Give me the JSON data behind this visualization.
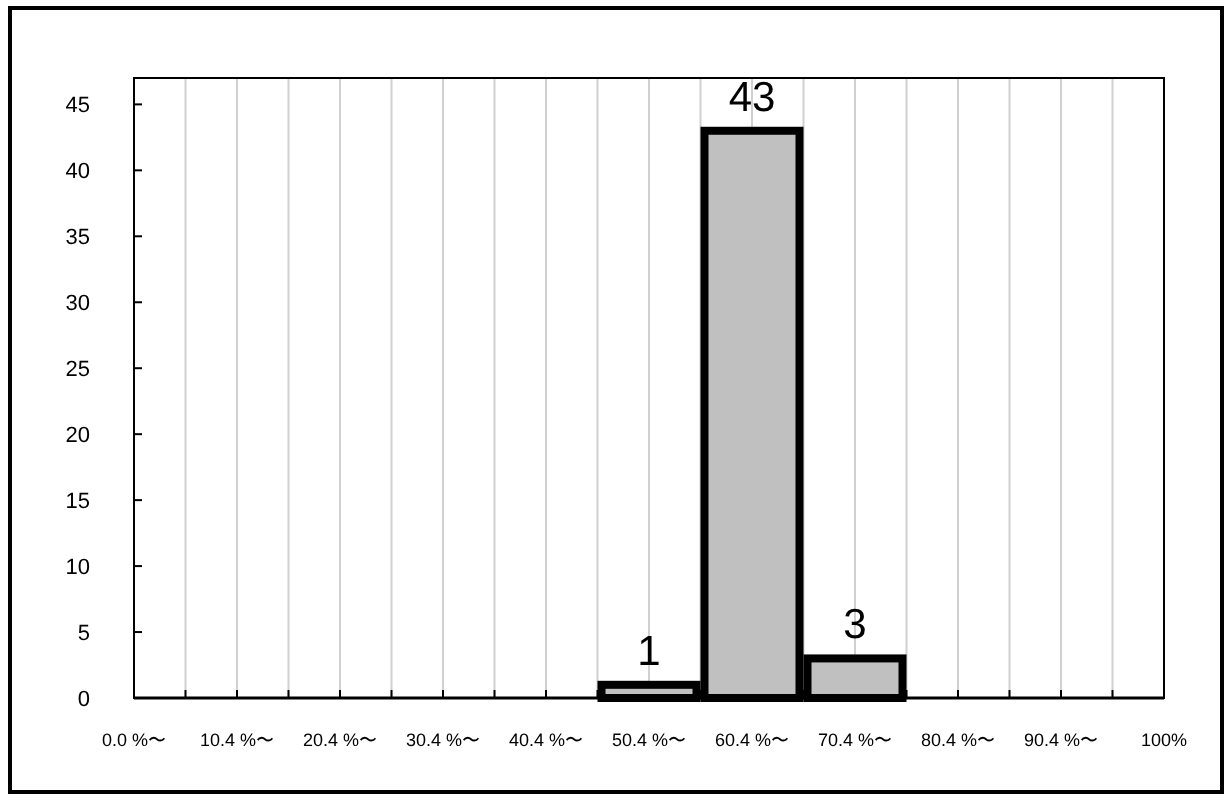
{
  "chart_data": {
    "type": "bar",
    "categories": [
      "0.0 %〜",
      "10.4 %〜",
      "20.4 %〜",
      "30.4 %〜",
      "40.4 %〜",
      "50.4 %〜",
      "60.4 %〜",
      "70.4 %〜",
      "80.4 %〜",
      "90.4 %〜",
      "100%"
    ],
    "values": [
      0,
      0,
      0,
      0,
      0,
      1,
      43,
      3,
      0,
      0,
      0
    ],
    "value_labels": [
      null,
      null,
      null,
      null,
      null,
      "1",
      "43",
      "3",
      null,
      null,
      null
    ],
    "color": "#c0c0c0",
    "ylim": [
      0,
      47
    ],
    "yticks": [
      0,
      5,
      10,
      15,
      20,
      25,
      30,
      35,
      40,
      45
    ],
    "grid": "x"
  }
}
